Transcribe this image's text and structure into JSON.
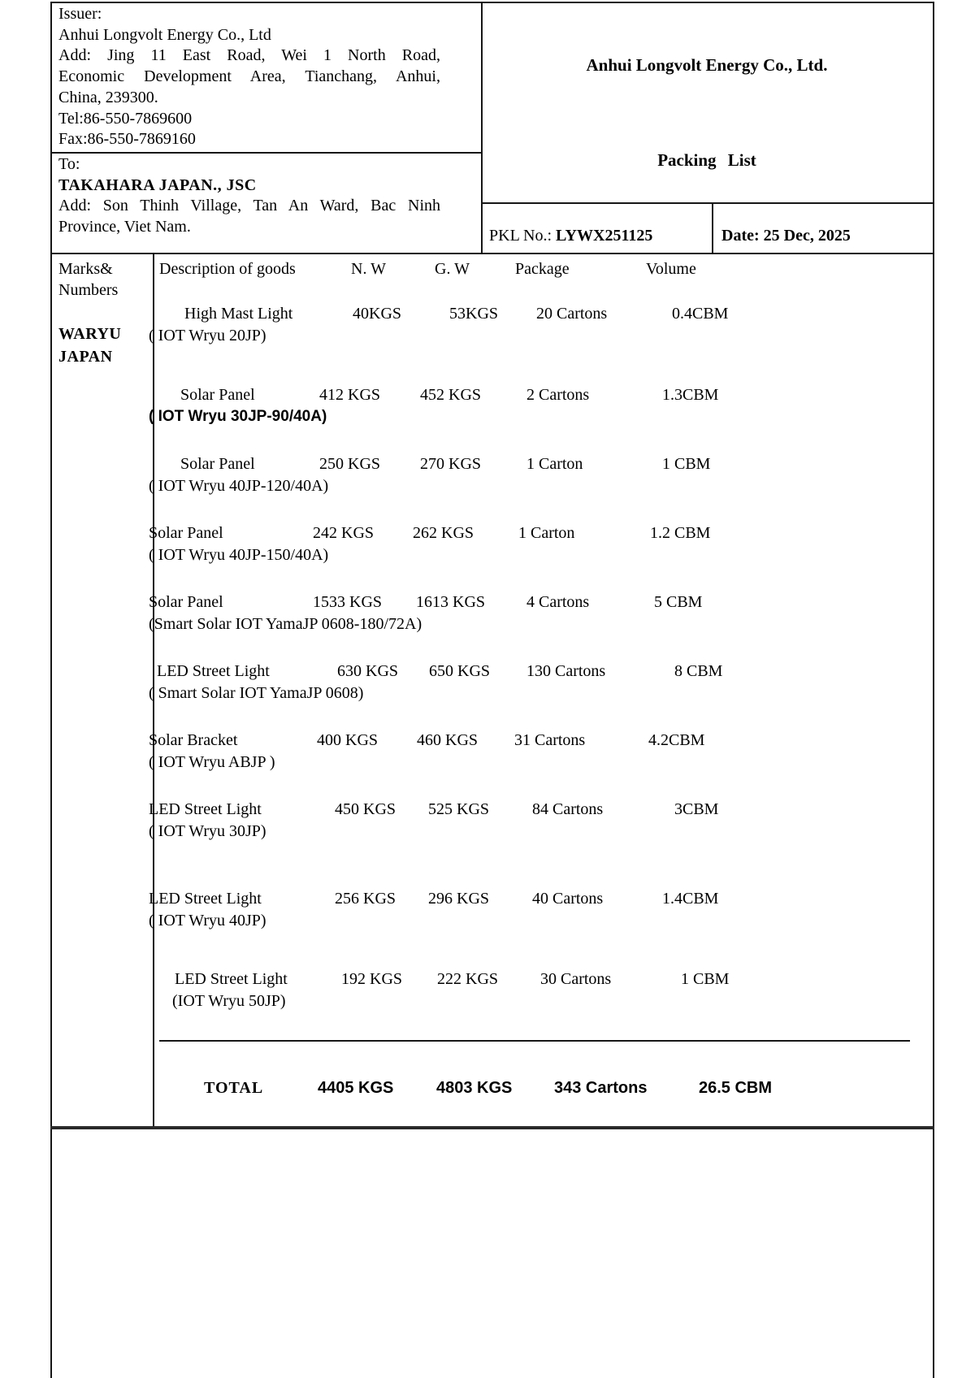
{
  "issuer": {
    "label": "Issuer:",
    "company": "Anhui Longvolt Energy Co., Ltd",
    "address_lines": [
      "Add: Jing 11 East Road, Wei 1 North Road,",
      "Economic Development Area, Tianchang, Anhui,",
      "China, 239300."
    ],
    "tel": "Tel:86-550-7869600",
    "fax": "Fax:86-550-7869160"
  },
  "consignee": {
    "label": "To:",
    "company": "TAKAHARA JAPAN., JSC",
    "address_lines": [
      "Add: Son Thinh Village, Tan An Ward, Bac Ninh",
      "Province, Viet Nam."
    ]
  },
  "header": {
    "company_title": "Anhui Longvolt Energy Co., Ltd.",
    "doc_title": "Packing List",
    "pkl_label": "PKL No.:",
    "pkl_value": "LYWX251125",
    "date_label": "Date:",
    "date_value": "25 Dec, 2025"
  },
  "table": {
    "marks_header_line1": "Marks&",
    "marks_header_line2": "Numbers",
    "marks_value_line1": "WARYU",
    "marks_value_line2": "JAPAN",
    "columns": {
      "description": "Description of goods",
      "nw": "N. W",
      "gw": "G. W",
      "package": "Package",
      "volume": "Volume"
    },
    "rows": [
      {
        "description": "High Mast Light",
        "model": "( IOT Wryu 20JP)",
        "nw": "40KGS",
        "gw": "53KGS",
        "package": "20 Cartons",
        "volume": "0.4CBM"
      },
      {
        "description": "Solar Panel",
        "model": "( IOT Wryu 30JP-90/40A)",
        "nw": "412 KGS",
        "gw": "452 KGS",
        "package": "2 Cartons",
        "volume": "1.3CBM"
      },
      {
        "description": "Solar Panel",
        "model": "( IOT Wryu 40JP-120/40A)",
        "nw": "250 KGS",
        "gw": "270 KGS",
        "package": "1 Carton",
        "volume": "1 CBM"
      },
      {
        "description": "Solar Panel",
        "model": "( IOT Wryu 40JP-150/40A)",
        "nw": "242 KGS",
        "gw": "262 KGS",
        "package": "1 Carton",
        "volume": "1.2 CBM"
      },
      {
        "description": "Solar Panel",
        "model": "(Smart Solar IOT YamaJP 0608-180/72A)",
        "nw": "1533 KGS",
        "gw": "1613 KGS",
        "package": "4 Cartons",
        "volume": "5 CBM"
      },
      {
        "description": "LED Street Light",
        "model": "( Smart Solar IOT YamaJP 0608)",
        "nw": "630 KGS",
        "gw": "650 KGS",
        "package": "130 Cartons",
        "volume": "8 CBM"
      },
      {
        "description": "Solar Bracket",
        "model": "( IOT Wryu ABJP )",
        "nw": "400 KGS",
        "gw": "460 KGS",
        "package": "31 Cartons",
        "volume": "4.2CBM"
      },
      {
        "description": "LED Street Light",
        "model": "( IOT Wryu 30JP)",
        "nw": "450 KGS",
        "gw": "525 KGS",
        "package": "84 Cartons",
        "volume": "3CBM"
      },
      {
        "description": "LED Street Light",
        "model": "( IOT Wryu 40JP)",
        "nw": "256 KGS",
        "gw": "296 KGS",
        "package": "40 Cartons",
        "volume": "1.4CBM"
      },
      {
        "description": "LED Street Light",
        "model": "(IOT Wryu 50JP)",
        "nw": "192 KGS",
        "gw": "222 KGS",
        "package": "30 Cartons",
        "volume": "1 CBM"
      }
    ],
    "total": {
      "label": "TOTAL",
      "nw": "4405 KGS",
      "gw": "4803 KGS",
      "package": "343 Cartons",
      "volume": "26.5 CBM"
    }
  }
}
